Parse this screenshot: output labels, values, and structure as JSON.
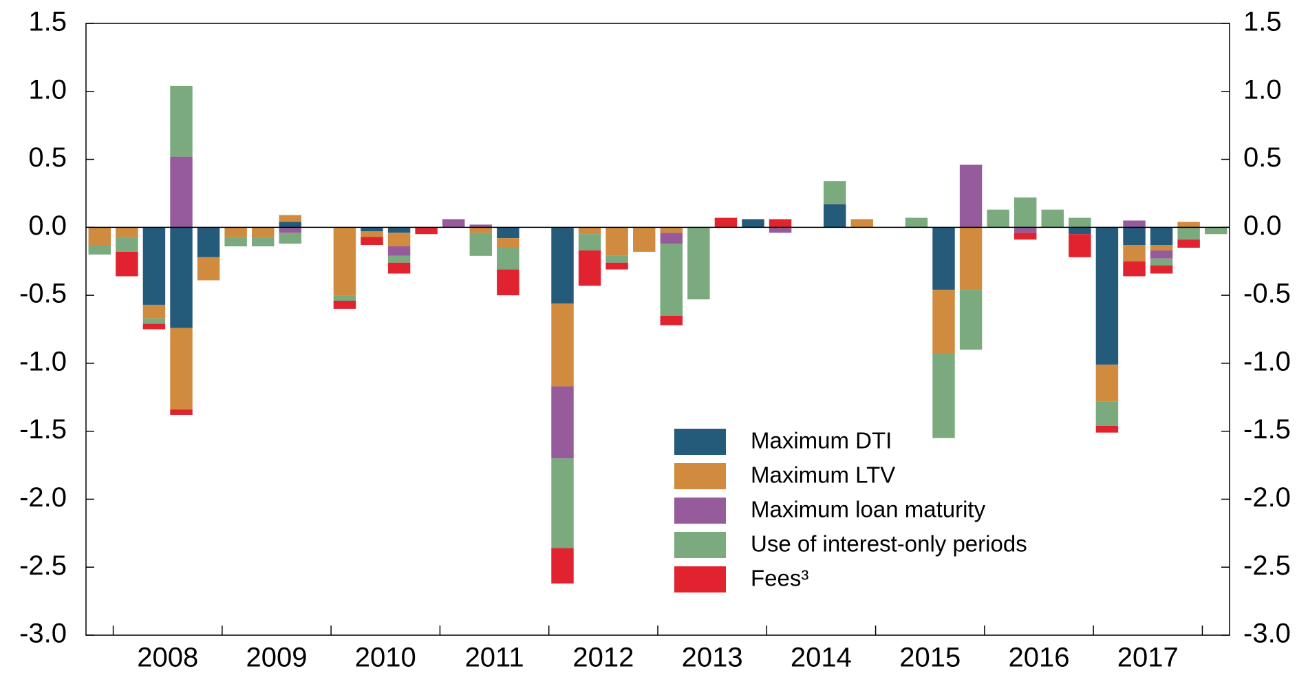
{
  "chart_data": {
    "type": "bar",
    "stacked": true,
    "categories": [
      null,
      null,
      null,
      null,
      null,
      null,
      null,
      null,
      null,
      null,
      null,
      null,
      null,
      null,
      null,
      null,
      null,
      null,
      null,
      null,
      null,
      null,
      null,
      null,
      null,
      null,
      null,
      null,
      null,
      null,
      null,
      null,
      null,
      null,
      null,
      null,
      null,
      null,
      null,
      null,
      null,
      null
    ],
    "year_labels": [
      "2008",
      "2009",
      "2010",
      "2011",
      "2012",
      "2013",
      "2014",
      "2015",
      "2016",
      "2017"
    ],
    "series": [
      {
        "name": "Maximum DTI",
        "color": "#245a7a",
        "values": [
          0,
          0,
          -0.57,
          -0.74,
          -0.22,
          0,
          0,
          0.04,
          0,
          0,
          -0.03,
          -0.04,
          0,
          0,
          0,
          -0.08,
          0,
          -0.56,
          0,
          0,
          0,
          0,
          0,
          0,
          0.06,
          0,
          0,
          0.17,
          0,
          0,
          0,
          -0.46,
          0,
          0,
          0,
          0,
          -0.05,
          -1.01,
          -0.13,
          -0.13,
          0,
          0
        ]
      },
      {
        "name": "Maximum LTV",
        "color": "#d08b3e",
        "values": [
          -0.13,
          -0.07,
          -0.1,
          -0.6,
          -0.17,
          -0.07,
          -0.07,
          0.05,
          0,
          -0.5,
          -0.04,
          -0.1,
          0,
          0,
          -0.04,
          -0.07,
          0,
          -0.61,
          -0.05,
          -0.21,
          -0.18,
          -0.04,
          0,
          0,
          0,
          0,
          0,
          0,
          0.06,
          0,
          0,
          -0.47,
          -0.46,
          0,
          0,
          0,
          0,
          -0.27,
          -0.12,
          -0.04,
          0.04,
          0
        ]
      },
      {
        "name": "Maximum loan maturity",
        "color": "#965b9b",
        "values": [
          0,
          0,
          0,
          0.52,
          0,
          0,
          0,
          -0.04,
          0,
          0,
          0,
          -0.07,
          0,
          0.06,
          0.02,
          0,
          0,
          -0.53,
          0,
          0,
          0,
          -0.08,
          0,
          0,
          0,
          -0.04,
          0,
          0,
          0,
          0,
          0,
          0,
          0.46,
          0,
          -0.04,
          0,
          0,
          0,
          0.05,
          -0.06,
          0,
          0
        ]
      },
      {
        "name": "Use of interest-only periods",
        "color": "#7aaa7e",
        "values": [
          -0.07,
          -0.11,
          -0.04,
          0.52,
          0,
          -0.07,
          -0.07,
          -0.08,
          0,
          -0.04,
          0,
          -0.05,
          0,
          0,
          -0.17,
          -0.16,
          0,
          -0.66,
          -0.12,
          -0.05,
          0,
          -0.53,
          -0.53,
          0,
          0,
          0,
          0,
          0.17,
          0,
          0,
          0.07,
          -0.62,
          -0.44,
          0.13,
          0.22,
          0.13,
          0.07,
          -0.18,
          0,
          -0.05,
          -0.09,
          -0.05
        ]
      },
      {
        "name": "Fees³",
        "color": "#e0232e",
        "values": [
          0,
          -0.18,
          -0.04,
          -0.04,
          0,
          0,
          0,
          0,
          0,
          -0.06,
          -0.06,
          -0.08,
          -0.05,
          0,
          0,
          -0.19,
          0,
          -0.26,
          -0.26,
          -0.05,
          0,
          -0.07,
          0,
          0.07,
          0,
          0.06,
          0,
          0,
          0,
          0,
          0,
          0,
          0,
          0,
          -0.05,
          0,
          -0.17,
          -0.05,
          -0.11,
          -0.06,
          -0.06,
          0
        ]
      }
    ],
    "ylim": [
      -3,
      1.5
    ],
    "yticks": [
      1.5,
      {
        "value": 1,
        "label": "1.0"
      },
      0.5,
      {
        "value": 0,
        "label": "0.0"
      },
      -0.5,
      {
        "value": -1,
        "label": "-1.0"
      },
      -1.5,
      {
        "value": -2,
        "label": "-2.0"
      },
      -2.5,
      {
        "value": -3,
        "label": "-3.0"
      }
    ],
    "grid": false,
    "legend": "lower right"
  }
}
